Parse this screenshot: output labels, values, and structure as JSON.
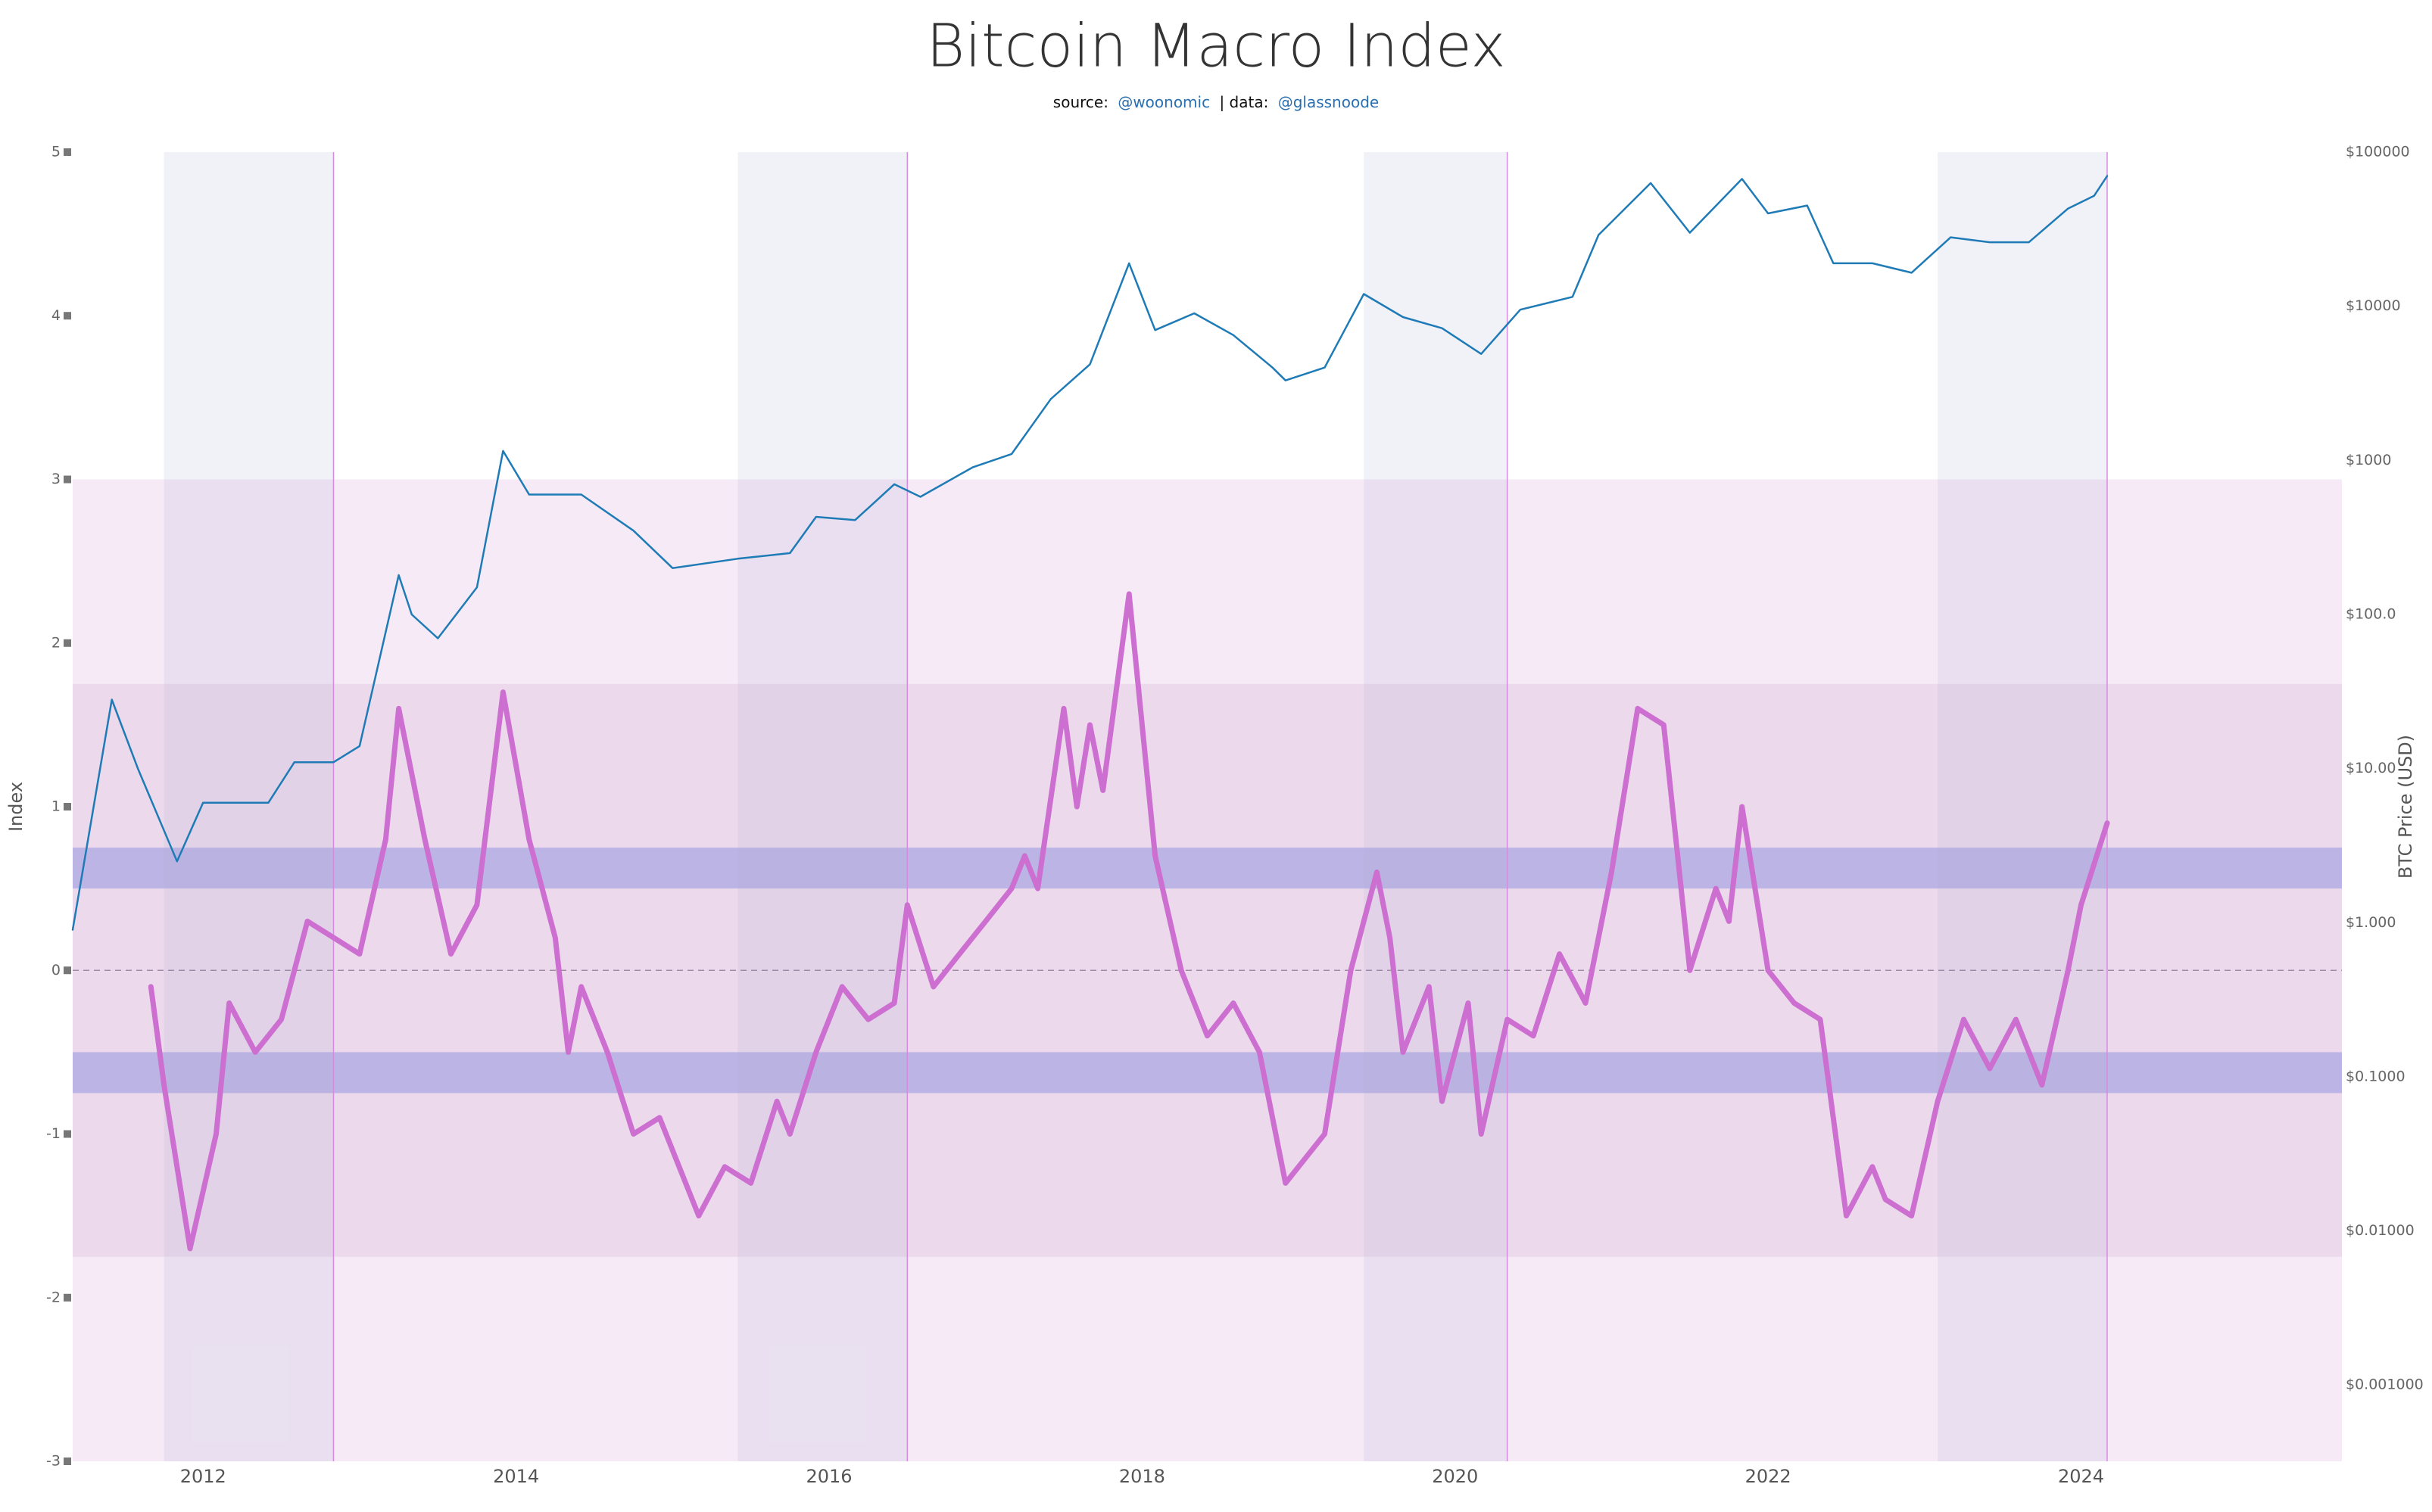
{
  "chart_data": {
    "type": "line",
    "title": "Bitcoin Macro Index",
    "subtitle": {
      "source_label": "source:",
      "source": "@woonomic",
      "data_label": "| data:",
      "data": "@glassnoode"
    },
    "y_label": "Index",
    "y2_label": "BTC Price (USD)",
    "xlim": [
      "2011-03",
      "2025-09"
    ],
    "xticks": [
      "2012",
      "2014",
      "2016",
      "2018",
      "2020",
      "2022",
      "2024"
    ],
    "ylim": [
      -3,
      5
    ],
    "yticks": [
      -3,
      -2,
      -1,
      0,
      1,
      2,
      3,
      4,
      5
    ],
    "y2lim": [
      0.00032,
      100000
    ],
    "y2_log": true,
    "y2ticks": [
      {
        "value": 100000,
        "label": "$100000"
      },
      {
        "value": 10000,
        "label": "$10000"
      },
      {
        "value": 1000,
        "label": "$1000"
      },
      {
        "value": 100,
        "label": "$100.0"
      },
      {
        "value": 10,
        "label": "$10.00"
      },
      {
        "value": 1,
        "label": "$1.000"
      },
      {
        "value": 0.1,
        "label": "$0.1000"
      },
      {
        "value": 0.01,
        "label": "$0.01000"
      },
      {
        "value": 0.001,
        "label": "$0.001000"
      }
    ],
    "zeroline": true,
    "bands": [
      {
        "from": -3,
        "to": 3,
        "color": "rgba(205,140,205,0.18)"
      },
      {
        "from": -1.75,
        "to": 1.75,
        "color": "rgba(175,110,175,0.14)"
      },
      {
        "from": 0.5,
        "to": 0.75,
        "color": "rgba(110,120,215,0.38)"
      },
      {
        "from": -0.75,
        "to": -0.5,
        "color": "rgba(110,120,215,0.38)"
      }
    ],
    "regions": [
      {
        "start": "2011-10",
        "end": "2012-11"
      },
      {
        "start": "2015-06",
        "end": "2016-07"
      },
      {
        "start": "2019-06",
        "end": "2020-05"
      },
      {
        "start": "2023-02",
        "end": "2024-03"
      }
    ],
    "region_color": "rgba(175,175,215,0.18)",
    "region_line_color": "#d58be0",
    "series": [
      {
        "color": "#1f7bb6",
        "axis": "y2",
        "x": [
          "2011-03",
          "2011-06",
          "2011-08",
          "2011-11",
          "2012-01",
          "2012-06",
          "2012-08",
          "2012-11",
          "2013-01",
          "2013-04",
          "2013-05",
          "2013-07",
          "2013-10",
          "2013-12",
          "2014-02",
          "2014-06",
          "2014-10",
          "2015-01",
          "2015-06",
          "2015-10",
          "2015-12",
          "2016-03",
          "2016-06",
          "2016-08",
          "2016-12",
          "2017-03",
          "2017-06",
          "2017-09",
          "2017-12",
          "2018-02",
          "2018-05",
          "2018-08",
          "2018-11",
          "2018-12",
          "2019-03",
          "2019-06",
          "2019-09",
          "2019-12",
          "2020-03",
          "2020-06",
          "2020-10",
          "2020-12",
          "2021-04",
          "2021-07",
          "2021-11",
          "2022-01",
          "2022-04",
          "2022-06",
          "2022-09",
          "2022-12",
          "2023-03",
          "2023-06",
          "2023-09",
          "2023-12",
          "2024-02",
          "2024-03"
        ],
        "values": [
          0.9,
          28,
          10,
          2.5,
          6,
          6,
          11,
          11,
          14,
          180,
          100,
          70,
          150,
          1150,
          600,
          600,
          350,
          200,
          230,
          250,
          430,
          410,
          700,
          580,
          900,
          1100,
          2500,
          4200,
          19000,
          7000,
          9000,
          6500,
          4000,
          3300,
          4000,
          12000,
          8500,
          7200,
          4900,
          9500,
          11500,
          29000,
          63000,
          30000,
          67000,
          40000,
          45000,
          19000,
          19000,
          16500,
          28000,
          26000,
          26000,
          43000,
          52000,
          70000
        ]
      },
      {
        "color": "#cc6fd0",
        "axis": "y",
        "x": [
          "2011-09",
          "2011-10",
          "2011-12",
          "2012-02",
          "2012-03",
          "2012-05",
          "2012-07",
          "2012-09",
          "2012-11",
          "2013-01",
          "2013-03",
          "2013-04",
          "2013-06",
          "2013-08",
          "2013-10",
          "2013-12",
          "2014-02",
          "2014-04",
          "2014-05",
          "2014-06",
          "2014-08",
          "2014-10",
          "2014-12",
          "2015-03",
          "2015-05",
          "2015-07",
          "2015-09",
          "2015-10",
          "2015-12",
          "2016-02",
          "2016-04",
          "2016-06",
          "2016-07",
          "2016-09",
          "2016-11",
          "2017-01",
          "2017-03",
          "2017-04",
          "2017-05",
          "2017-07",
          "2017-08",
          "2017-09",
          "2017-10",
          "2017-12",
          "2018-02",
          "2018-04",
          "2018-06",
          "2018-08",
          "2018-10",
          "2018-12",
          "2019-03",
          "2019-05",
          "2019-07",
          "2019-08",
          "2019-09",
          "2019-11",
          "2019-12",
          "2020-02",
          "2020-03",
          "2020-05",
          "2020-07",
          "2020-09",
          "2020-11",
          "2021-01",
          "2021-03",
          "2021-05",
          "2021-07",
          "2021-09",
          "2021-10",
          "2021-11",
          "2022-01",
          "2022-03",
          "2022-05",
          "2022-07",
          "2022-09",
          "2022-10",
          "2022-12",
          "2023-02",
          "2023-04",
          "2023-06",
          "2023-08",
          "2023-10",
          "2023-12",
          "2024-01",
          "2024-03"
        ],
        "values": [
          -0.1,
          -0.7,
          -1.7,
          -1.0,
          -0.2,
          -0.5,
          -0.3,
          0.3,
          0.2,
          0.1,
          0.8,
          1.6,
          0.8,
          0.1,
          0.4,
          1.7,
          0.8,
          0.2,
          -0.5,
          -0.1,
          -0.5,
          -1.0,
          -0.9,
          -1.5,
          -1.2,
          -1.3,
          -0.8,
          -1.0,
          -0.5,
          -0.1,
          -0.3,
          -0.2,
          0.4,
          -0.1,
          0.1,
          0.3,
          0.5,
          0.7,
          0.5,
          1.6,
          1.0,
          1.5,
          1.1,
          2.3,
          0.7,
          0.0,
          -0.4,
          -0.2,
          -0.5,
          -1.3,
          -1.0,
          0.0,
          0.6,
          0.2,
          -0.5,
          -0.1,
          -0.8,
          -0.2,
          -1.0,
          -0.3,
          -0.4,
          0.1,
          -0.2,
          0.6,
          1.6,
          1.5,
          0.0,
          0.5,
          0.3,
          1.0,
          0.0,
          -0.2,
          -0.3,
          -1.5,
          -1.2,
          -1.4,
          -1.5,
          -0.8,
          -0.3,
          -0.6,
          -0.3,
          -0.7,
          0.0,
          0.4,
          0.9
        ]
      }
    ]
  }
}
